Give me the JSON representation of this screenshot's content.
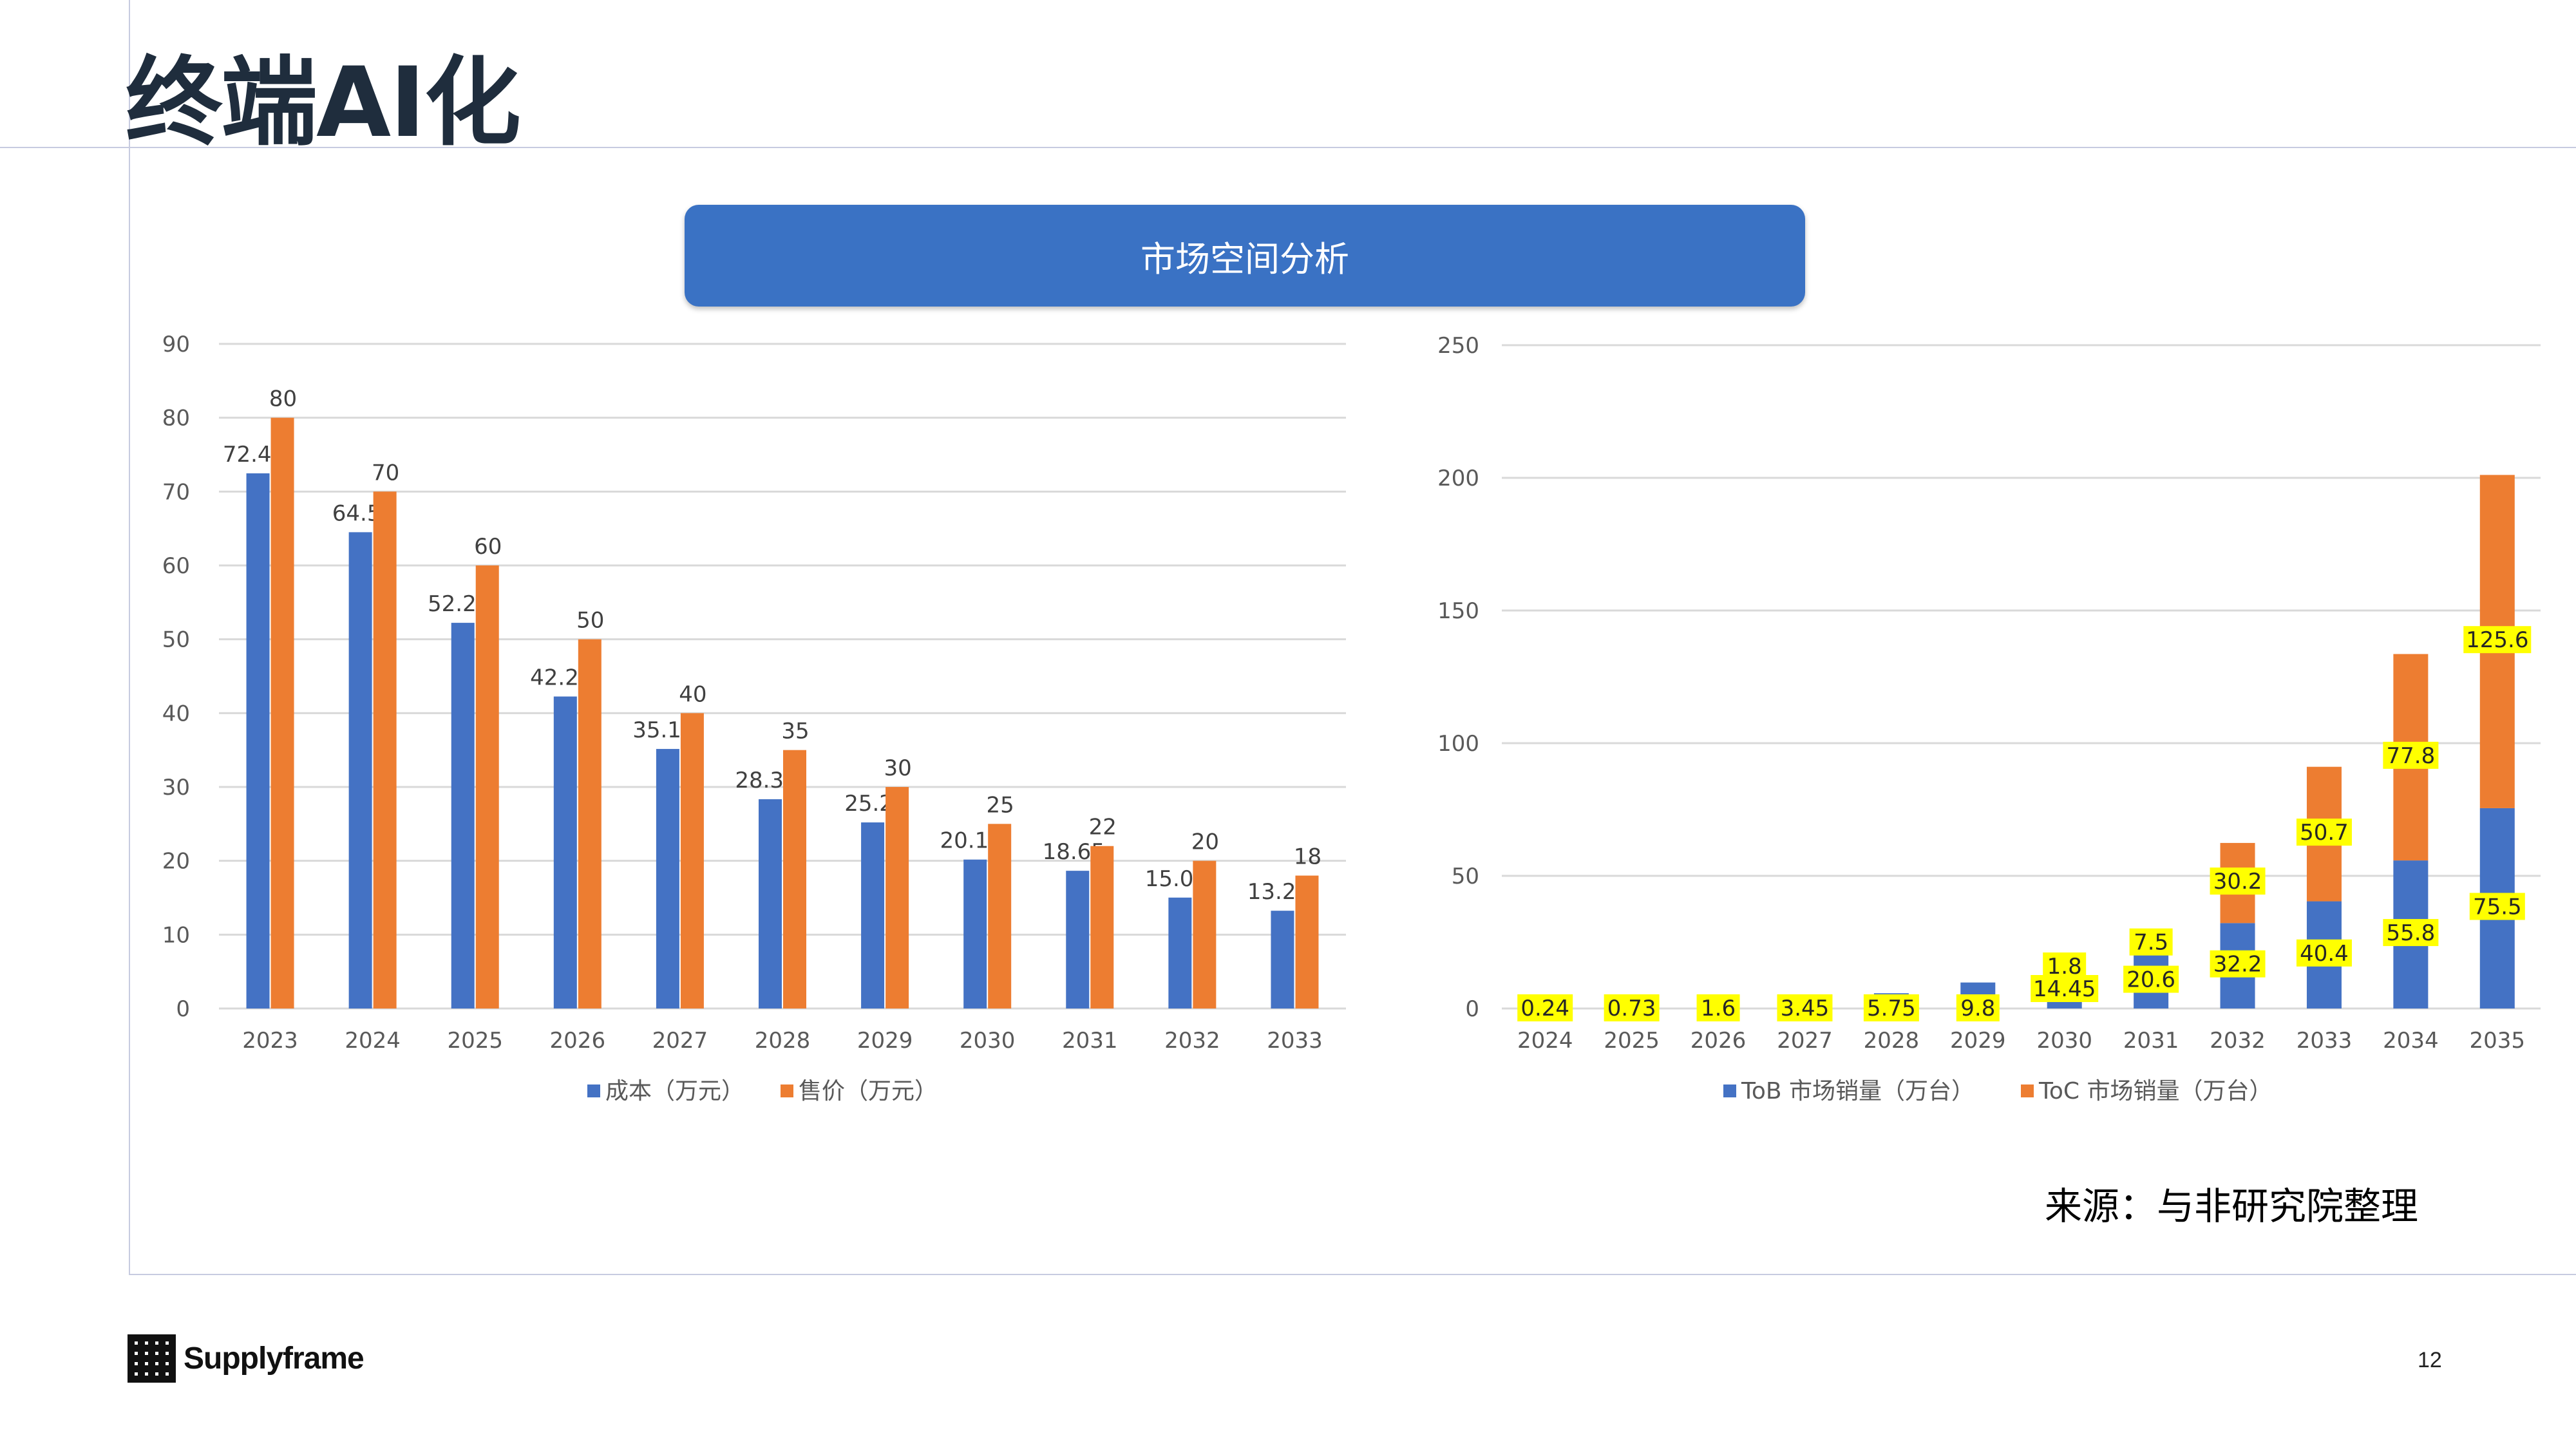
{
  "page": {
    "title": "终端AI化",
    "banner": "市场空间分析",
    "source": "来源：与非研究院整理",
    "brand": "Supplyframe",
    "page_number": "12"
  },
  "colors": {
    "blue": "#4472C4",
    "orange": "#ED7D31",
    "highlight": "#FFFF00",
    "banner": "#3A72C4"
  },
  "chart_data": [
    {
      "type": "bar",
      "categories": [
        "2023",
        "2024",
        "2025",
        "2026",
        "2027",
        "2028",
        "2029",
        "2030",
        "2031",
        "2032",
        "2033"
      ],
      "series": [
        {
          "name": "成本（万元）",
          "values": [
            72.47,
            64.5,
            52.23,
            42.25,
            35.15,
            28.34,
            25.2,
            20.17,
            18.65,
            15.02,
            13.24
          ],
          "color": "#4472C4"
        },
        {
          "name": "售价（万元）",
          "values": [
            80,
            70,
            60,
            50,
            40,
            35,
            30,
            25,
            22,
            20,
            18
          ],
          "color": "#ED7D31"
        }
      ],
      "ylim": [
        0,
        90
      ],
      "yticks": [
        0,
        10,
        20,
        30,
        40,
        50,
        60,
        70,
        80,
        90
      ],
      "legend": "bottom",
      "grid": true
    },
    {
      "type": "bar",
      "stacked": true,
      "categories": [
        "2024",
        "2025",
        "2026",
        "2027",
        "2028",
        "2029",
        "2030",
        "2031",
        "2032",
        "2033",
        "2034",
        "2035"
      ],
      "series": [
        {
          "name": "ToB 市场销量（万台）",
          "values": [
            0.24,
            0.73,
            1.6,
            3.45,
            5.75,
            9.8,
            14.45,
            20.6,
            32.2,
            40.4,
            55.8,
            75.5
          ],
          "color": "#4472C4"
        },
        {
          "name": "ToC 市场销量（万台）",
          "values": [
            null,
            null,
            null,
            null,
            null,
            null,
            1.8,
            7.5,
            30.2,
            50.7,
            77.8,
            125.6
          ],
          "color": "#ED7D31"
        }
      ],
      "ylim": [
        0,
        250
      ],
      "yticks": [
        0,
        50,
        100,
        150,
        200,
        250
      ],
      "legend": "bottom",
      "grid": true,
      "data_label_highlight": true
    }
  ]
}
